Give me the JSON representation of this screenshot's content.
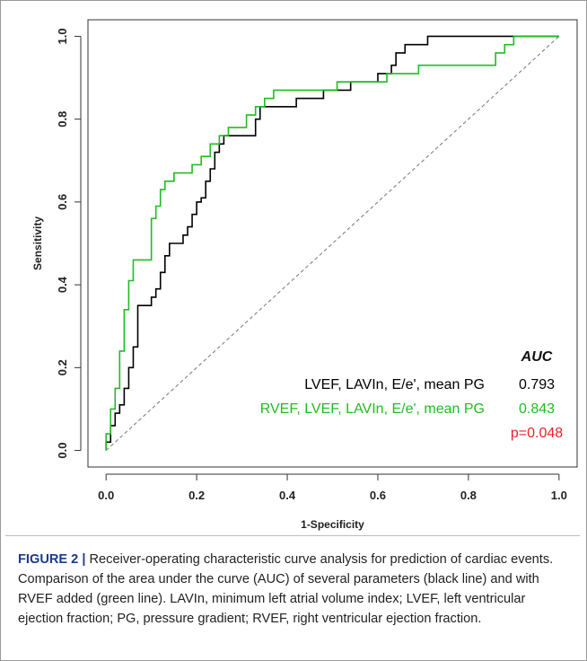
{
  "figure": {
    "caption_label": "FIGURE 2 |",
    "caption_text": "Receiver-operating characteristic curve analysis for prediction of cardiac events. Comparison of the area under the curve (AUC) of several parameters (black line) and with RVEF added (green line). LAVIn, minimum left atrial volume index; LVEF, left ventricular ejection fraction; PG, pressure gradient; RVEF, right ventricular ejection fraction."
  },
  "chart_data": {
    "type": "line",
    "xlabel": "1-Specificity",
    "ylabel": "Sensitivity",
    "xlim": [
      0,
      1
    ],
    "ylim": [
      0,
      1
    ],
    "x_ticks": [
      "0.0",
      "0.2",
      "0.4",
      "0.6",
      "0.8",
      "1.0"
    ],
    "y_ticks": [
      "0.0",
      "0.2",
      "0.4",
      "0.6",
      "0.8",
      "1.0"
    ],
    "grid": false,
    "legend": {
      "header": "AUC",
      "placement": "bottom-right",
      "entries": [
        {
          "label": "LVEF, LAVIn, E/e', mean PG",
          "value": "0.793",
          "color": "#000000"
        },
        {
          "label": "RVEF, LVEF, LAVIn, E/e', mean PG",
          "value": "0.843",
          "color": "#22bb22"
        }
      ],
      "p_value": "p=0.048",
      "p_color": "#e8202a"
    },
    "reference_line": {
      "from": [
        0,
        0
      ],
      "to": [
        1,
        1
      ],
      "style": "dashed",
      "color": "#777777"
    },
    "series": [
      {
        "color": "#000000",
        "points": [
          [
            0,
            0
          ],
          [
            0,
            0.02
          ],
          [
            0.01,
            0.02
          ],
          [
            0.01,
            0.06
          ],
          [
            0.02,
            0.06
          ],
          [
            0.02,
            0.09
          ],
          [
            0.03,
            0.09
          ],
          [
            0.03,
            0.11
          ],
          [
            0.04,
            0.11
          ],
          [
            0.04,
            0.15
          ],
          [
            0.05,
            0.15
          ],
          [
            0.05,
            0.2
          ],
          [
            0.06,
            0.2
          ],
          [
            0.06,
            0.25
          ],
          [
            0.07,
            0.25
          ],
          [
            0.07,
            0.35
          ],
          [
            0.1,
            0.35
          ],
          [
            0.1,
            0.37
          ],
          [
            0.11,
            0.37
          ],
          [
            0.11,
            0.39
          ],
          [
            0.12,
            0.39
          ],
          [
            0.12,
            0.43
          ],
          [
            0.13,
            0.43
          ],
          [
            0.13,
            0.47
          ],
          [
            0.14,
            0.47
          ],
          [
            0.14,
            0.5
          ],
          [
            0.17,
            0.5
          ],
          [
            0.17,
            0.52
          ],
          [
            0.18,
            0.52
          ],
          [
            0.18,
            0.54
          ],
          [
            0.19,
            0.54
          ],
          [
            0.19,
            0.57
          ],
          [
            0.2,
            0.57
          ],
          [
            0.2,
            0.6
          ],
          [
            0.21,
            0.6
          ],
          [
            0.21,
            0.61
          ],
          [
            0.22,
            0.61
          ],
          [
            0.22,
            0.65
          ],
          [
            0.23,
            0.65
          ],
          [
            0.23,
            0.68
          ],
          [
            0.24,
            0.68
          ],
          [
            0.24,
            0.72
          ],
          [
            0.25,
            0.72
          ],
          [
            0.25,
            0.74
          ],
          [
            0.26,
            0.74
          ],
          [
            0.26,
            0.76
          ],
          [
            0.33,
            0.76
          ],
          [
            0.33,
            0.8
          ],
          [
            0.34,
            0.8
          ],
          [
            0.34,
            0.83
          ],
          [
            0.42,
            0.83
          ],
          [
            0.42,
            0.85
          ],
          [
            0.48,
            0.85
          ],
          [
            0.48,
            0.87
          ],
          [
            0.54,
            0.87
          ],
          [
            0.54,
            0.89
          ],
          [
            0.6,
            0.89
          ],
          [
            0.6,
            0.91
          ],
          [
            0.63,
            0.91
          ],
          [
            0.63,
            0.93
          ],
          [
            0.64,
            0.93
          ],
          [
            0.64,
            0.96
          ],
          [
            0.66,
            0.96
          ],
          [
            0.66,
            0.98
          ],
          [
            0.71,
            0.98
          ],
          [
            0.71,
            1.0
          ],
          [
            1.0,
            1.0
          ]
        ]
      },
      {
        "color": "#22bb22",
        "points": [
          [
            0,
            0
          ],
          [
            0,
            0.04
          ],
          [
            0.01,
            0.04
          ],
          [
            0.01,
            0.1
          ],
          [
            0.02,
            0.1
          ],
          [
            0.02,
            0.15
          ],
          [
            0.03,
            0.15
          ],
          [
            0.03,
            0.24
          ],
          [
            0.04,
            0.24
          ],
          [
            0.04,
            0.34
          ],
          [
            0.05,
            0.34
          ],
          [
            0.05,
            0.41
          ],
          [
            0.06,
            0.41
          ],
          [
            0.06,
            0.46
          ],
          [
            0.1,
            0.46
          ],
          [
            0.1,
            0.56
          ],
          [
            0.11,
            0.56
          ],
          [
            0.11,
            0.59
          ],
          [
            0.12,
            0.59
          ],
          [
            0.12,
            0.63
          ],
          [
            0.13,
            0.63
          ],
          [
            0.13,
            0.65
          ],
          [
            0.15,
            0.65
          ],
          [
            0.15,
            0.67
          ],
          [
            0.19,
            0.67
          ],
          [
            0.19,
            0.69
          ],
          [
            0.21,
            0.69
          ],
          [
            0.21,
            0.71
          ],
          [
            0.23,
            0.71
          ],
          [
            0.23,
            0.74
          ],
          [
            0.25,
            0.74
          ],
          [
            0.25,
            0.76
          ],
          [
            0.27,
            0.76
          ],
          [
            0.27,
            0.78
          ],
          [
            0.31,
            0.78
          ],
          [
            0.31,
            0.81
          ],
          [
            0.33,
            0.81
          ],
          [
            0.33,
            0.83
          ],
          [
            0.35,
            0.83
          ],
          [
            0.35,
            0.85
          ],
          [
            0.37,
            0.85
          ],
          [
            0.37,
            0.87
          ],
          [
            0.51,
            0.87
          ],
          [
            0.51,
            0.89
          ],
          [
            0.62,
            0.89
          ],
          [
            0.62,
            0.91
          ],
          [
            0.69,
            0.91
          ],
          [
            0.69,
            0.93
          ],
          [
            0.86,
            0.93
          ],
          [
            0.86,
            0.96
          ],
          [
            0.88,
            0.96
          ],
          [
            0.88,
            0.98
          ],
          [
            0.9,
            0.98
          ],
          [
            0.9,
            1.0
          ],
          [
            1.0,
            1.0
          ]
        ]
      }
    ]
  }
}
